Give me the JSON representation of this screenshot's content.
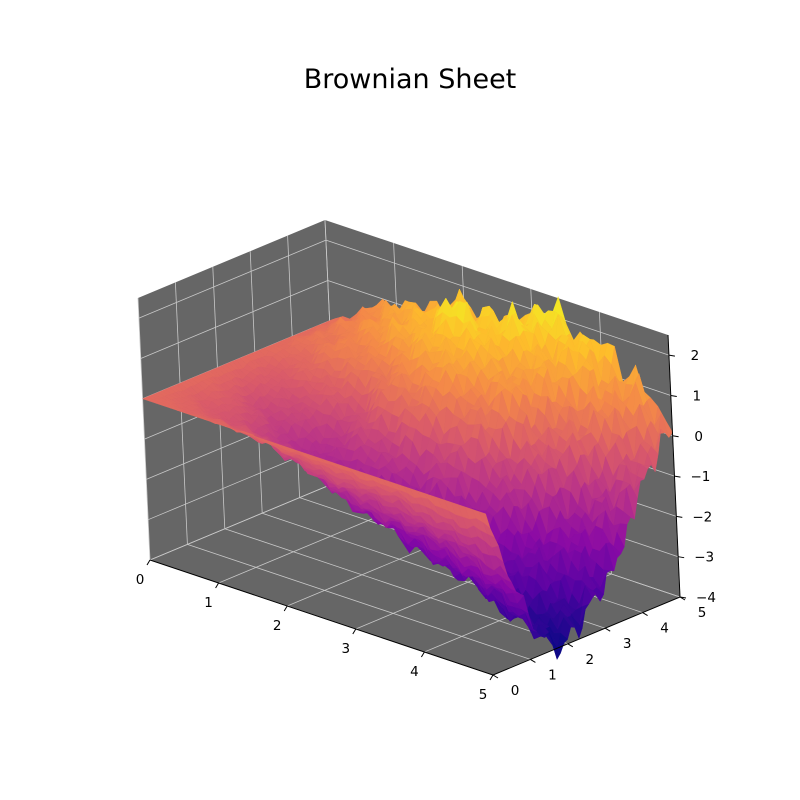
{
  "chart_data": {
    "type": "surface3d",
    "title": "Brownian Sheet",
    "xlabel": "",
    "ylabel": "",
    "zlabel": "",
    "colormap": "plasma",
    "pane_color": "#666666",
    "grid": true,
    "xlim": [
      0,
      5
    ],
    "ylim": [
      0,
      5
    ],
    "zlim": [
      -4,
      2.5
    ],
    "x_ticks": [
      "0",
      "1",
      "2",
      "3",
      "4",
      "5"
    ],
    "y_ticks": [
      "0",
      "1",
      "2",
      "3",
      "4",
      "5"
    ],
    "z_ticks": [
      "−4",
      "−3",
      "−2",
      "−1",
      "0",
      "1",
      "2"
    ],
    "surface": {
      "x": [
        0,
        0.5,
        1,
        1.5,
        2,
        2.5,
        3,
        3.5,
        4,
        4.5,
        5
      ],
      "y": [
        0,
        0.5,
        1,
        1.5,
        2,
        2.5,
        3,
        3.5,
        4,
        4.5,
        5
      ],
      "z": [
        [
          0.0,
          0.0,
          0.0,
          0.0,
          0.0,
          0.0,
          0.0,
          0.0,
          0.0,
          0.0,
          0.0
        ],
        [
          0.0,
          -0.2,
          -0.4,
          -0.3,
          -0.6,
          -0.5,
          -0.3,
          0.1,
          0.3,
          0.4,
          0.5
        ],
        [
          0.0,
          -0.3,
          -0.6,
          -0.9,
          -1.1,
          -0.7,
          -0.2,
          0.4,
          0.6,
          0.9,
          1.0
        ],
        [
          0.0,
          -0.4,
          -0.9,
          -1.3,
          -1.5,
          -1.0,
          -0.4,
          0.5,
          1.1,
          1.3,
          1.2
        ],
        [
          0.0,
          -0.6,
          -1.2,
          -1.8,
          -1.6,
          -0.8,
          0.2,
          0.9,
          1.6,
          1.4,
          1.5
        ],
        [
          0.0,
          -0.8,
          -1.5,
          -2.2,
          -1.9,
          -1.1,
          0.4,
          1.3,
          2.2,
          1.6,
          1.3
        ],
        [
          0.0,
          -0.9,
          -1.7,
          -2.4,
          -2.1,
          -1.2,
          0.1,
          1.0,
          1.4,
          2.0,
          1.9
        ],
        [
          0.0,
          -1.0,
          -1.9,
          -2.8,
          -2.6,
          -1.6,
          -0.6,
          0.6,
          1.0,
          1.5,
          2.1
        ],
        [
          0.0,
          -1.2,
          -2.2,
          -3.0,
          -2.9,
          -2.2,
          -1.4,
          -0.5,
          0.2,
          1.2,
          1.7
        ],
        [
          0.0,
          -1.5,
          -2.6,
          -3.4,
          -3.5,
          -3.0,
          -2.4,
          -1.6,
          -0.6,
          0.3,
          1.0
        ],
        [
          0.0,
          -1.7,
          -2.9,
          -3.8,
          -4.0,
          -3.6,
          -2.9,
          -2.2,
          -1.3,
          -0.4,
          0.4
        ]
      ]
    }
  }
}
